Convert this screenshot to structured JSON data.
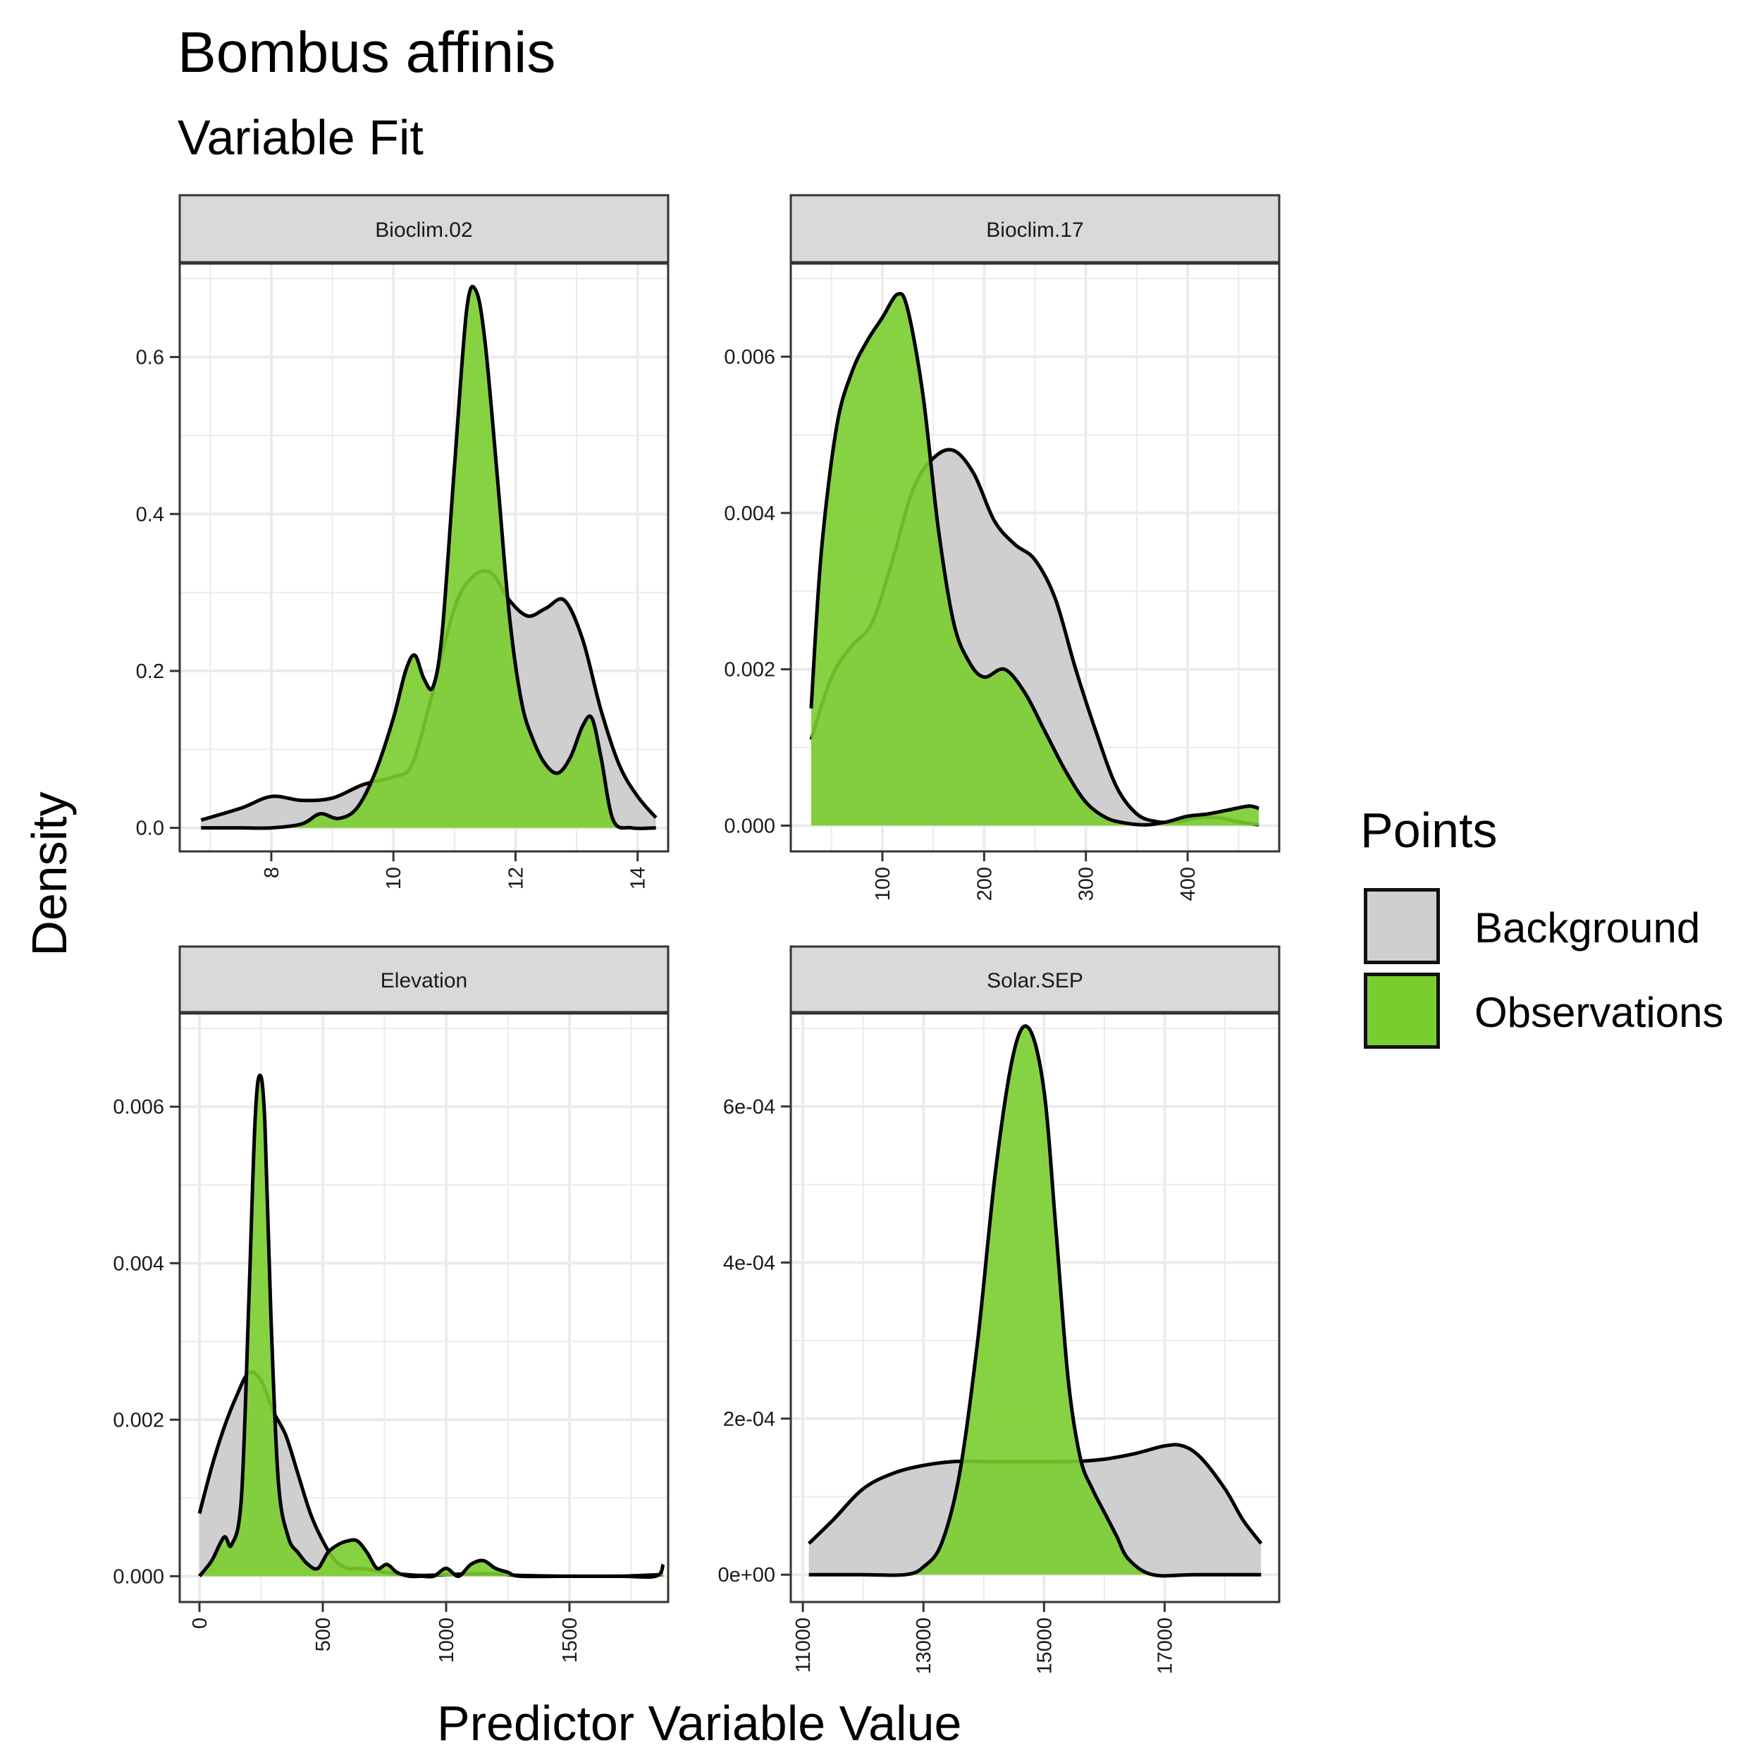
{
  "title": "Bombus affinis",
  "subtitle": "Variable Fit",
  "xlabel": "Predictor Variable Value",
  "ylabel": "Density",
  "legend": {
    "title": "Points",
    "items": [
      {
        "label": "Background",
        "color": "#cfcfcf"
      },
      {
        "label": "Observations",
        "color": "#7acd2e"
      }
    ]
  },
  "colors": {
    "background_fill": "#cfcfcf",
    "observation_fill": "#7acd2e",
    "strip_fill": "#d9d9d9",
    "grid": "#ebebeb",
    "line": "#000000"
  },
  "chart_data": [
    {
      "type": "area",
      "panel": "Bioclim.02",
      "xlim": [
        6.5,
        14.5
      ],
      "ylim": [
        -0.03,
        0.72
      ],
      "xticks": [
        8,
        10,
        12,
        14
      ],
      "yticks": [
        0.0,
        0.2,
        0.4,
        0.6
      ],
      "ytick_labels": [
        "0.0",
        "0.2",
        "0.4",
        "0.6"
      ],
      "series": [
        {
          "name": "Background",
          "x": [
            6.85,
            7.5,
            8.0,
            8.5,
            9.0,
            9.5,
            10.0,
            10.3,
            10.6,
            11.0,
            11.3,
            11.6,
            11.9,
            12.2,
            12.5,
            12.8,
            13.1,
            13.4,
            13.7,
            14.0,
            14.3
          ],
          "y": [
            0.01,
            0.025,
            0.04,
            0.035,
            0.038,
            0.055,
            0.065,
            0.08,
            0.16,
            0.28,
            0.32,
            0.325,
            0.29,
            0.27,
            0.28,
            0.29,
            0.24,
            0.15,
            0.08,
            0.04,
            0.013
          ]
        },
        {
          "name": "Observations",
          "x": [
            6.85,
            7.5,
            8.0,
            8.5,
            8.8,
            9.1,
            9.4,
            9.7,
            10.0,
            10.2,
            10.35,
            10.5,
            10.65,
            10.8,
            11.0,
            11.2,
            11.35,
            11.5,
            11.7,
            11.9,
            12.1,
            12.3,
            12.5,
            12.7,
            12.9,
            13.1,
            13.25,
            13.4,
            13.6,
            13.9,
            14.3
          ],
          "y": [
            0.0,
            0.0,
            0.0,
            0.005,
            0.018,
            0.012,
            0.025,
            0.07,
            0.14,
            0.2,
            0.22,
            0.19,
            0.18,
            0.25,
            0.46,
            0.66,
            0.685,
            0.62,
            0.45,
            0.27,
            0.16,
            0.11,
            0.08,
            0.07,
            0.09,
            0.13,
            0.14,
            0.09,
            0.01,
            0.0,
            0.0
          ]
        }
      ]
    },
    {
      "type": "area",
      "panel": "Bioclim.17",
      "xlim": [
        10,
        490
      ],
      "ylim": [
        -0.00033,
        0.0072
      ],
      "xticks": [
        100,
        200,
        300,
        400
      ],
      "yticks": [
        0.0,
        0.002,
        0.004,
        0.006
      ],
      "ytick_labels": [
        "0.000",
        "0.002",
        "0.004",
        "0.006"
      ],
      "series": [
        {
          "name": "Background",
          "x": [
            30,
            50,
            70,
            90,
            110,
            130,
            150,
            170,
            190,
            210,
            230,
            250,
            270,
            290,
            310,
            330,
            350,
            370,
            390,
            410,
            430,
            450,
            470
          ],
          "y": [
            0.0011,
            0.0019,
            0.0023,
            0.0026,
            0.0034,
            0.0043,
            0.0047,
            0.0048,
            0.0045,
            0.0039,
            0.0036,
            0.0034,
            0.0029,
            0.002,
            0.0012,
            0.0005,
            0.00015,
            5e-05,
            5e-05,
            0.0001,
            0.0001,
            5e-05,
            1e-05
          ]
        },
        {
          "name": "Observations",
          "x": [
            30,
            40,
            55,
            70,
            85,
            100,
            115,
            125,
            140,
            155,
            170,
            185,
            200,
            220,
            240,
            260,
            280,
            300,
            320,
            340,
            360,
            380,
            400,
            420,
            440,
            460,
            470
          ],
          "y": [
            0.0015,
            0.0035,
            0.0051,
            0.0058,
            0.0062,
            0.0065,
            0.0068,
            0.0066,
            0.0055,
            0.0038,
            0.0026,
            0.0021,
            0.0019,
            0.002,
            0.0017,
            0.0012,
            0.0007,
            0.0003,
            0.0001,
            3e-05,
            1e-05,
            5e-05,
            0.00012,
            0.00015,
            0.0002,
            0.00025,
            0.00022
          ]
        }
      ]
    },
    {
      "type": "area",
      "panel": "Elevation",
      "xlim": [
        -80,
        1900
      ],
      "ylim": [
        -0.00033,
        0.0072
      ],
      "xticks": [
        0,
        500,
        1000,
        1500
      ],
      "yticks": [
        0.0,
        0.002,
        0.004,
        0.006
      ],
      "ytick_labels": [
        "0.000",
        "0.002",
        "0.004",
        "0.006"
      ],
      "series": [
        {
          "name": "Background",
          "x": [
            0,
            50,
            100,
            150,
            200,
            250,
            300,
            350,
            400,
            450,
            500,
            550,
            600,
            650,
            700,
            750,
            800,
            900,
            1000,
            1100,
            1200,
            1300,
            1500,
            1700,
            1880
          ],
          "y": [
            0.0008,
            0.0014,
            0.0019,
            0.0023,
            0.0026,
            0.0025,
            0.0021,
            0.0018,
            0.0013,
            0.0008,
            0.00045,
            0.0002,
            0.0001,
            0.0001,
            8e-05,
            5e-05,
            3e-05,
            1e-05,
            2e-05,
            3e-05,
            3e-05,
            1e-05,
            0.0,
            0.0,
            2e-05
          ]
        },
        {
          "name": "Observations",
          "x": [
            0,
            50,
            100,
            130,
            170,
            200,
            225,
            245,
            265,
            290,
            320,
            360,
            400,
            440,
            480,
            520,
            560,
            600,
            640,
            680,
            720,
            760,
            800,
            850,
            900,
            950,
            1000,
            1050,
            1100,
            1150,
            1200,
            1250,
            1300,
            1500,
            1700,
            1850,
            1880
          ],
          "y": [
            0.0,
            0.0002,
            0.0005,
            0.0004,
            0.001,
            0.0035,
            0.0058,
            0.0064,
            0.0058,
            0.0033,
            0.0012,
            0.0005,
            0.0003,
            0.00015,
            0.0001,
            0.0003,
            0.0004,
            0.00045,
            0.00045,
            0.0003,
            0.0001,
            0.00015,
            5e-05,
            0.0,
            0.0,
            0.0,
            0.0001,
            0.0,
            0.00015,
            0.0002,
            0.0001,
            5e-05,
            0.0,
            0.0,
            0.0,
            0.0,
            0.00015
          ]
        }
      ]
    },
    {
      "type": "area",
      "panel": "Solar.SEP",
      "xlim": [
        10800,
        18900
      ],
      "ylim": [
        -3.5e-05,
        0.00072
      ],
      "xticks": [
        11000,
        13000,
        15000,
        17000
      ],
      "yticks": [
        0.0,
        0.0002,
        0.0004,
        0.0006
      ],
      "ytick_labels": [
        "0e+00",
        "2e-04",
        "4e-04",
        "6e-04"
      ],
      "series": [
        {
          "name": "Background",
          "x": [
            11100,
            11500,
            12000,
            12500,
            13000,
            13500,
            14000,
            14500,
            15000,
            15500,
            16000,
            16500,
            17000,
            17300,
            17600,
            18000,
            18300,
            18600
          ],
          "y": [
            4e-05,
            7e-05,
            0.00011,
            0.00013,
            0.00014,
            0.000145,
            0.000145,
            0.000145,
            0.000145,
            0.000145,
            0.000148,
            0.000155,
            0.000165,
            0.000165,
            0.00015,
            0.00011,
            7e-05,
            4e-05
          ]
        },
        {
          "name": "Observations",
          "x": [
            11100,
            12000,
            12700,
            13000,
            13300,
            13600,
            13900,
            14200,
            14500,
            14750,
            15000,
            15200,
            15400,
            15600,
            15800,
            16000,
            16200,
            16400,
            16800,
            17500,
            18600
          ],
          "y": [
            0.0,
            0.0,
            0.0,
            1e-05,
            4e-05,
            0.00013,
            0.0003,
            0.00052,
            0.00067,
            0.0007,
            0.00062,
            0.00044,
            0.00025,
            0.00015,
            0.00011,
            8e-05,
            5e-05,
            2e-05,
            0.0,
            0.0,
            0.0
          ]
        }
      ]
    }
  ]
}
